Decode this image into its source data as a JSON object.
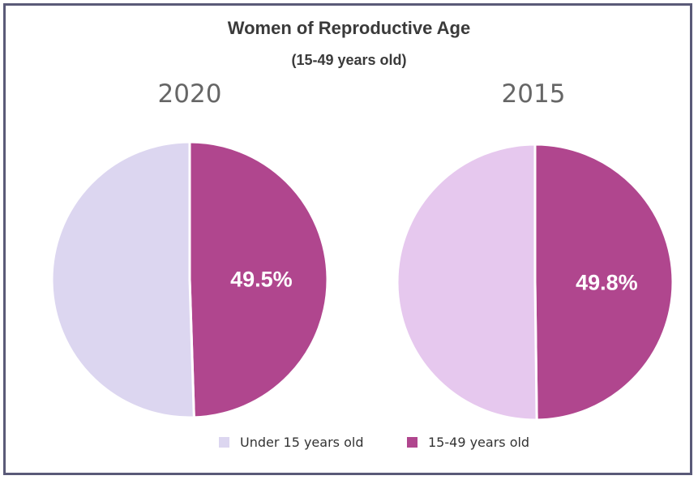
{
  "chart_data": {
    "type": "pie",
    "title": "Women of Reproductive Age",
    "subtitle": "(15-49 years old)",
    "legend_position": "bottom",
    "series_names": [
      "Under 15 years old",
      "15-49 years old"
    ],
    "colors": [
      "#dcd6f0",
      "#b0468e",
      "#e6c8ee"
    ],
    "pies": [
      {
        "label": "2020",
        "slices": [
          {
            "name": "Under 15 years old",
            "value": 50.5,
            "color": "#dcd6f0"
          },
          {
            "name": "15-49 years old",
            "value": 49.5,
            "color": "#b0468e",
            "data_label": "49.5%"
          }
        ]
      },
      {
        "label": "2015",
        "slices": [
          {
            "name": "Under 15 years old",
            "value": 50.2,
            "color": "#e6c8ee"
          },
          {
            "name": "15-49 years old",
            "value": 49.8,
            "color": "#b0468e",
            "data_label": "49.8%"
          }
        ]
      }
    ]
  }
}
